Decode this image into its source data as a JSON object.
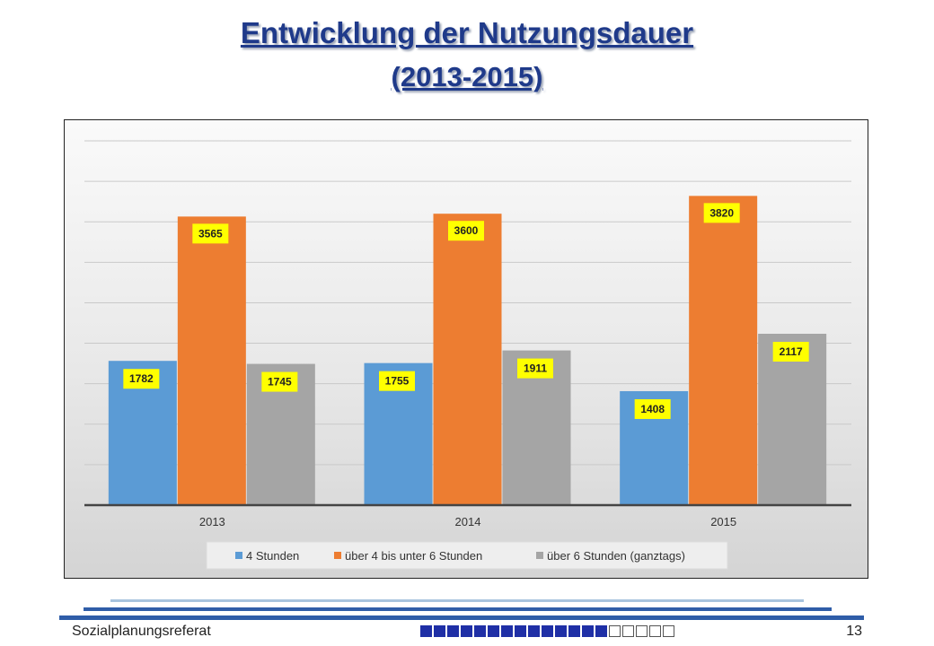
{
  "slide": {
    "title_line1": "Entwicklung der Nutzungsdauer",
    "title_line2": "(2013-2015)"
  },
  "footer": {
    "left_text": "Sozialplanungsreferat",
    "page_number": "13",
    "squares_filled": 14,
    "squares_empty": 5,
    "square_color": "#1f2fa6"
  },
  "chart_data": {
    "type": "bar",
    "categories": [
      "2013",
      "2014",
      "2015"
    ],
    "series": [
      {
        "name": "4 Stunden",
        "color": "#5b9bd5",
        "values": [
          1782,
          1755,
          1408
        ]
      },
      {
        "name": "über 4 bis unter 6 Stunden",
        "color": "#ed7d31",
        "values": [
          3565,
          3600,
          3820
        ]
      },
      {
        "name": "über 6 Stunden (ganztags)",
        "color": "#a5a5a5",
        "values": [
          1745,
          1911,
          2117
        ]
      }
    ],
    "data_labels": true,
    "data_label_background": "#ffff00",
    "ylim": [
      0,
      4500
    ],
    "grid": true,
    "legend_position": "bottom",
    "title": "",
    "xlabel": "",
    "ylabel": ""
  }
}
